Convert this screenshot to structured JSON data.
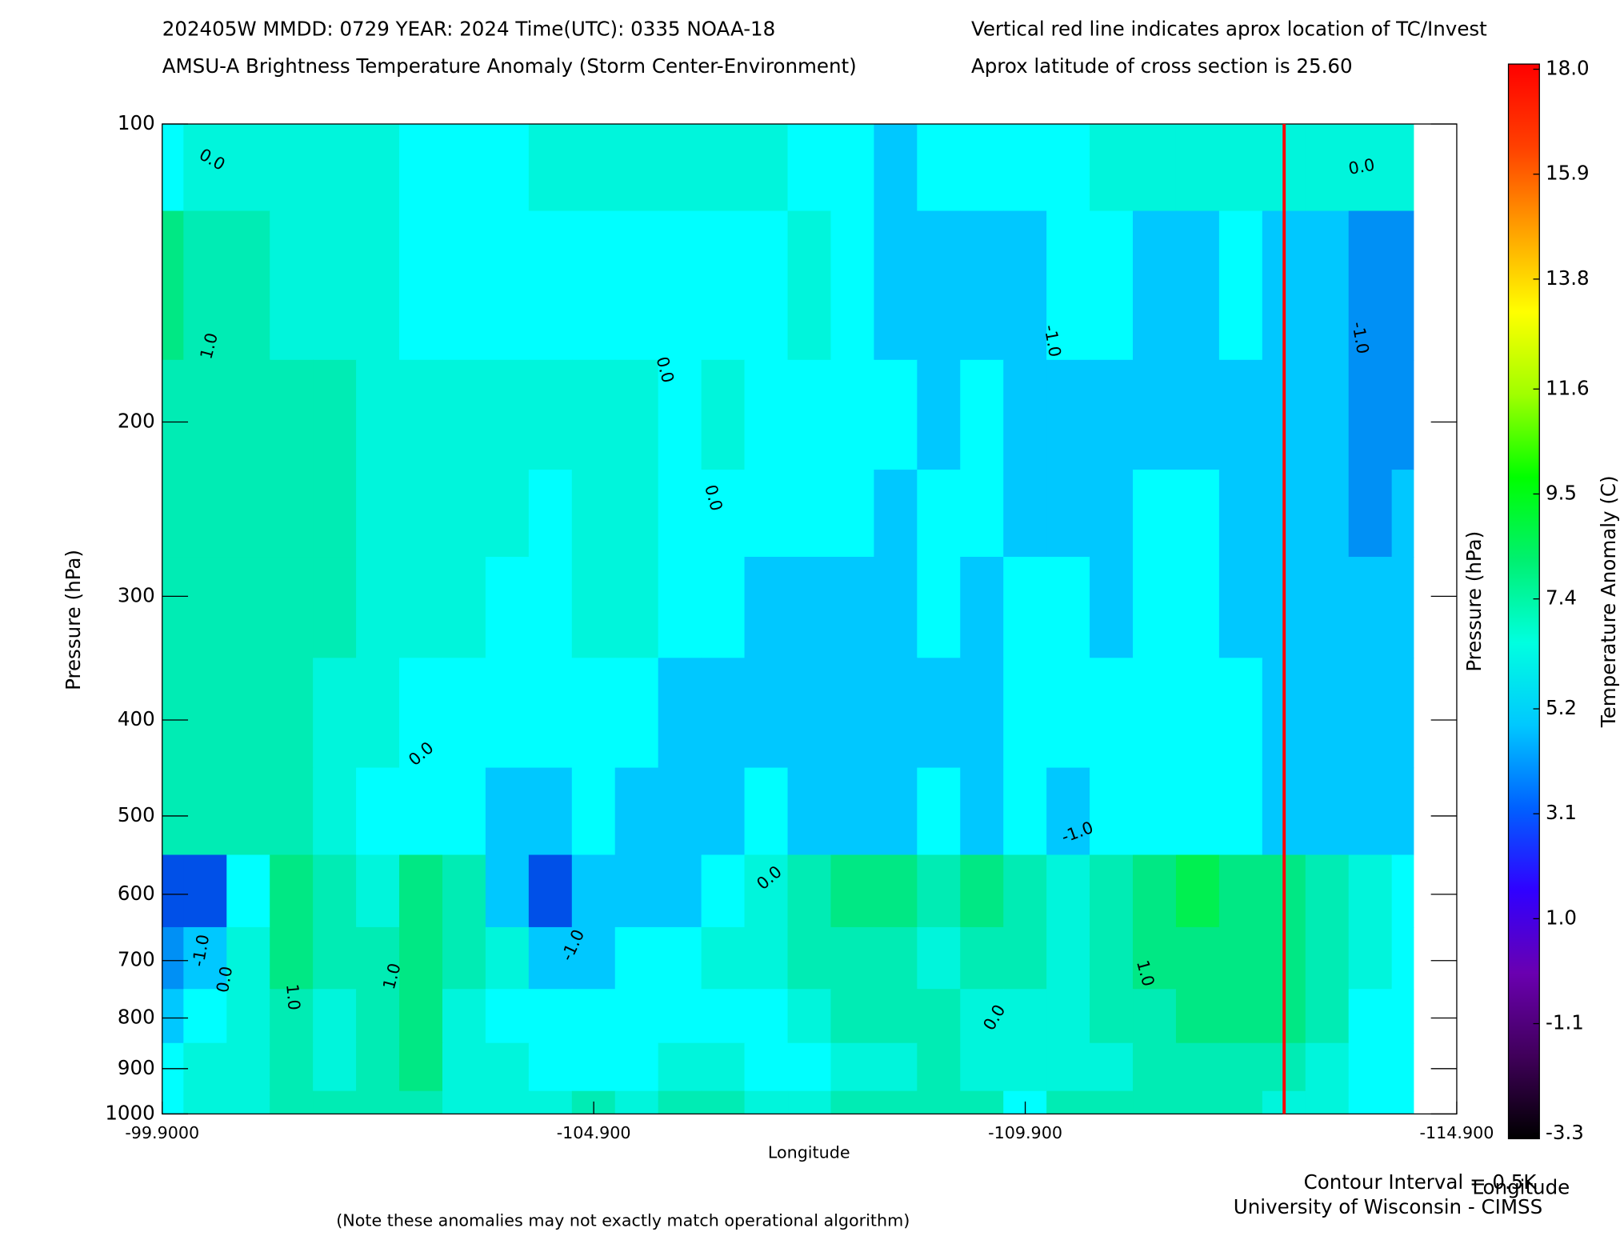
{
  "chart_data": {
    "type": "contour",
    "title": "202405W  MMDD: 0729 YEAR: 2024 Time(UTC): 0335 NOAA-18",
    "subtitle": "AMSU-A Brightness Temperature Anomaly (Storm Center-Environment)",
    "annotations": [
      "Vertical red line indicates aprox location of TC/Invest",
      "Aprox latitude of cross section is 25.60"
    ],
    "xlabel": "Longitude",
    "ylabel": "Pressure (hPa)",
    "y2label": "Pressure (hPa)",
    "footer": [
      "Contour Interval = 0.5K",
      "Longitude",
      "University of Wisconsin - CIMSS"
    ],
    "note": "(Note these anomalies may not exactly match operational algorithm)",
    "note_color": "#ff5a30",
    "xlim": [
      -99.9,
      -114.9
    ],
    "xticks": [
      {
        "value": -99.9,
        "label": "-99.9000"
      },
      {
        "value": -104.9,
        "label": "-104.900"
      },
      {
        "value": -109.9,
        "label": "-109.900"
      },
      {
        "value": -114.9,
        "label": "-114.900"
      }
    ],
    "ylim": [
      100,
      1000
    ],
    "y_log": true,
    "y_inverted": true,
    "yticks": [
      100,
      200,
      300,
      400,
      500,
      600,
      700,
      800,
      900,
      1000
    ],
    "storm_longitude": -112.9,
    "storm_line_color": "#ff0000",
    "contour_labels": [
      "0.0",
      "1.0",
      "0.0",
      "0.0",
      "-1.0",
      "-1.0",
      "0.0",
      "0.0",
      "0.0",
      "-1.0",
      "-1.0",
      "0.0",
      "1.0",
      "1.0",
      "-1.0",
      "1.0",
      "0.0"
    ],
    "fill_levels": [
      -1.5,
      -1.0,
      -0.5,
      0.0,
      0.5,
      1.0,
      1.5
    ],
    "fill_colors": [
      "#0050e8",
      "#0090f5",
      "#00c8ff",
      "#00ffff",
      "#00f5dc",
      "#00ecb4",
      "#00e884",
      "#00f050"
    ],
    "x": [
      -99.9,
      -100.4,
      -100.9,
      -101.4,
      -101.9,
      -102.4,
      -102.9,
      -103.4,
      -103.9,
      -104.4,
      -104.9,
      -105.4,
      -105.9,
      -106.4,
      -106.9,
      -107.4,
      -107.9,
      -108.4,
      -108.9,
      -109.4,
      -109.9,
      -110.4,
      -110.9,
      -111.4,
      -111.9,
      -112.4,
      -112.9,
      -113.4,
      -113.9,
      -114.4
    ],
    "y": [
      100,
      150,
      200,
      250,
      300,
      400,
      500,
      600,
      700,
      800,
      900,
      1000
    ],
    "z": [
      [
        -0.2,
        0.2,
        0.2,
        0.2,
        0.2,
        0.2,
        -0.2,
        -0.2,
        -0.2,
        0.2,
        0.2,
        0.2,
        0.2,
        0.2,
        0.2,
        -0.2,
        -0.2,
        -0.7,
        -0.2,
        -0.2,
        -0.2,
        -0.2,
        0.2,
        0.2,
        0.2,
        0.2,
        0.2,
        0.2,
        0.2,
        0.2
      ],
      [
        1.2,
        0.7,
        0.7,
        0.2,
        0.2,
        0.2,
        -0.2,
        -0.2,
        -0.2,
        -0.2,
        -0.2,
        -0.2,
        -0.2,
        -0.2,
        -0.2,
        0.2,
        -0.2,
        -0.7,
        -0.7,
        -0.7,
        -0.7,
        -0.2,
        -0.2,
        -0.7,
        -0.7,
        -0.2,
        -0.7,
        -0.7,
        -1.2,
        -1.2
      ],
      [
        0.7,
        0.7,
        0.7,
        0.7,
        0.7,
        0.2,
        0.2,
        0.2,
        0.2,
        0.2,
        0.2,
        0.2,
        -0.2,
        0.2,
        -0.2,
        -0.2,
        -0.2,
        -0.2,
        -0.7,
        -0.2,
        -0.7,
        -0.7,
        -0.7,
        -0.7,
        -0.7,
        -0.7,
        -0.7,
        -0.7,
        -1.2,
        -1.2
      ],
      [
        0.7,
        0.7,
        0.7,
        0.7,
        0.7,
        0.2,
        0.2,
        0.2,
        0.2,
        -0.2,
        0.2,
        0.2,
        -0.2,
        -0.2,
        -0.2,
        -0.2,
        -0.2,
        -0.7,
        -0.2,
        -0.2,
        -0.7,
        -0.7,
        -0.7,
        -0.2,
        -0.2,
        -0.7,
        -0.7,
        -0.7,
        -1.2,
        -0.7
      ],
      [
        0.7,
        0.7,
        0.7,
        0.7,
        0.7,
        0.2,
        0.2,
        0.2,
        -0.2,
        -0.2,
        0.2,
        0.2,
        -0.2,
        -0.2,
        -0.7,
        -0.7,
        -0.7,
        -0.7,
        -0.2,
        -0.7,
        -0.2,
        -0.2,
        -0.7,
        -0.2,
        -0.2,
        -0.7,
        -0.7,
        -0.7,
        -0.7,
        -0.7
      ],
      [
        0.7,
        0.7,
        0.7,
        0.7,
        0.2,
        0.2,
        -0.2,
        -0.2,
        -0.2,
        -0.2,
        -0.2,
        -0.2,
        -0.7,
        -0.7,
        -0.7,
        -0.7,
        -0.7,
        -0.7,
        -0.7,
        -0.7,
        -0.2,
        -0.2,
        -0.2,
        -0.2,
        -0.2,
        -0.2,
        -0.7,
        -0.7,
        -0.7,
        -0.7
      ],
      [
        0.7,
        0.7,
        0.7,
        0.7,
        0.2,
        -0.2,
        -0.2,
        -0.2,
        -0.7,
        -0.7,
        -0.2,
        -0.7,
        -0.7,
        -0.7,
        -0.2,
        -0.7,
        -0.7,
        -0.7,
        -0.2,
        -0.7,
        -0.2,
        -0.7,
        -0.2,
        -0.2,
        -0.2,
        -0.2,
        -0.7,
        -0.7,
        -0.7,
        -0.7
      ],
      [
        -1.7,
        -1.7,
        -0.2,
        1.2,
        0.7,
        0.2,
        1.2,
        0.7,
        -0.7,
        -1.7,
        -0.7,
        -0.7,
        -0.7,
        -0.2,
        0.2,
        0.7,
        1.2,
        1.2,
        0.7,
        1.2,
        0.7,
        0.2,
        0.7,
        1.2,
        1.7,
        1.2,
        1.2,
        0.7,
        0.2,
        -0.2
      ],
      [
        -1.2,
        -0.7,
        0.2,
        1.2,
        0.7,
        0.7,
        1.2,
        0.7,
        0.2,
        -0.7,
        -0.7,
        -0.2,
        -0.2,
        0.2,
        0.2,
        0.7,
        0.7,
        0.7,
        0.2,
        0.7,
        0.7,
        0.2,
        0.7,
        1.2,
        1.2,
        1.2,
        1.2,
        0.7,
        0.2,
        -0.2
      ],
      [
        -0.7,
        -0.2,
        0.2,
        0.7,
        0.2,
        0.7,
        1.2,
        0.2,
        -0.2,
        -0.2,
        -0.2,
        -0.2,
        -0.2,
        -0.2,
        -0.2,
        0.2,
        0.7,
        0.7,
        0.7,
        0.2,
        0.2,
        0.2,
        0.7,
        0.7,
        1.2,
        1.2,
        1.2,
        0.7,
        -0.2,
        -0.2
      ],
      [
        -0.2,
        0.2,
        0.2,
        0.7,
        0.2,
        0.7,
        1.2,
        0.2,
        0.2,
        -0.2,
        -0.2,
        -0.2,
        0.2,
        0.2,
        -0.2,
        -0.2,
        0.2,
        0.2,
        0.7,
        0.2,
        0.2,
        0.2,
        0.2,
        0.7,
        0.7,
        0.7,
        0.7,
        0.2,
        -0.2,
        -0.2
      ],
      [
        -0.2,
        0.2,
        0.2,
        0.7,
        0.7,
        0.7,
        0.7,
        0.2,
        0.2,
        0.2,
        0.7,
        0.2,
        0.7,
        0.7,
        0.2,
        0.2,
        0.7,
        0.7,
        0.7,
        0.7,
        -0.2,
        0.7,
        0.7,
        0.7,
        0.7,
        0.7,
        0.2,
        0.2,
        -0.2,
        -0.2
      ]
    ],
    "colorbar": {
      "label": "Temperature Anomaly (C)",
      "lim": [
        -3.3,
        18.0
      ],
      "ticks": [
        {
          "value": 18.0,
          "label": "18.0"
        },
        15.9,
        13.8,
        11.6,
        9.5,
        7.4,
        5.2,
        3.1,
        {
          "value": 1.0,
          "label": "1.0"
        },
        -1.1,
        -3.3
      ],
      "colors": [
        "#000000",
        "#40005a",
        "#6a00b0",
        "#3000ff",
        "#0060ff",
        "#00c8ff",
        "#00ffe0",
        "#00f070",
        "#00ff00",
        "#a0ff00",
        "#ffff00",
        "#ffa000",
        "#ff4000",
        "#ff0000"
      ]
    }
  }
}
